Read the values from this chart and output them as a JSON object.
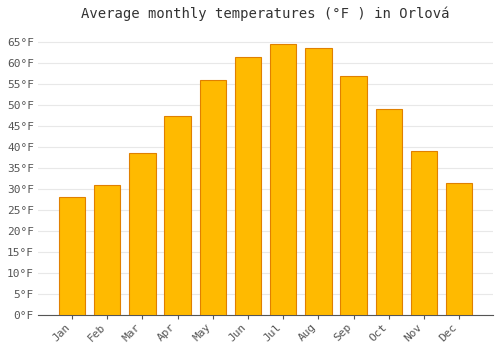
{
  "title": "Average monthly temperatures (°F ) in Orlová",
  "months": [
    "Jan",
    "Feb",
    "Mar",
    "Apr",
    "May",
    "Jun",
    "Jul",
    "Aug",
    "Sep",
    "Oct",
    "Nov",
    "Dec"
  ],
  "values": [
    28,
    31,
    38.5,
    47.5,
    56,
    61.5,
    64.5,
    63.5,
    57,
    49,
    39,
    31.5
  ],
  "bar_color": "#FFBA00",
  "bar_edge_color": "#E08000",
  "background_color": "#FFFFFF",
  "plot_bg_color": "#FFFFFF",
  "ylim": [
    0,
    68
  ],
  "yticks": [
    0,
    5,
    10,
    15,
    20,
    25,
    30,
    35,
    40,
    45,
    50,
    55,
    60,
    65
  ],
  "title_fontsize": 10,
  "tick_fontsize": 8,
  "grid_color": "#E8E8E8",
  "font_family": "monospace"
}
